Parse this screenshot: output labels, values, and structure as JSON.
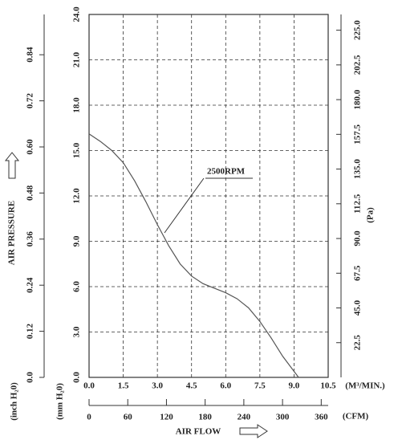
{
  "chart_data": {
    "type": "line",
    "y_label": "AIR PRESSURE",
    "x_label": "AIR FLOW",
    "y_unit": "(mm H₂0)",
    "y2_unit": "(Pa)",
    "y3_unit": "(inch H₂0)",
    "x_unit": "(M³/MIN.)",
    "x2_unit": "(CFM)",
    "x": [
      0,
      0.5,
      1.0,
      1.5,
      2.0,
      2.5,
      3.0,
      3.5,
      4.0,
      4.5,
      5.0,
      5.5,
      6.0,
      6.5,
      7.0,
      7.5,
      8.0,
      8.5,
      9.0,
      9.2
    ],
    "series": [
      {
        "name": "2500RPM",
        "color": "#555555",
        "values": [
          16.1,
          15.6,
          15.0,
          14.2,
          13.0,
          11.6,
          10.1,
          8.7,
          7.5,
          6.7,
          6.2,
          5.9,
          5.6,
          5.2,
          4.6,
          3.7,
          2.6,
          1.4,
          0.4,
          0
        ]
      }
    ],
    "xlim": [
      0,
      10.5
    ],
    "xticks": [
      {
        "value": 0,
        "label": "0.0"
      },
      1.5,
      {
        "value": 3,
        "label": "3.0"
      },
      4.5,
      {
        "value": 6,
        "label": "6.0"
      },
      7.5,
      {
        "value": 9,
        "label": "9.0"
      },
      10.5
    ],
    "ylim": [
      0,
      24
    ],
    "yticks": [
      {
        "value": 0,
        "label": "0.0"
      },
      {
        "value": 3,
        "label": "3.0"
      },
      {
        "value": 6,
        "label": "6.0"
      },
      {
        "value": 9,
        "label": "9.0"
      },
      {
        "value": 12,
        "label": "12.0"
      },
      {
        "value": 15,
        "label": "15.0"
      },
      {
        "value": 18,
        "label": "18.0"
      },
      {
        "value": 21,
        "label": "21.0"
      },
      {
        "value": 24,
        "label": "24.0"
      }
    ],
    "y2lim": [
      0,
      235.2
    ],
    "y2ticks": [
      22.5,
      {
        "value": 45,
        "label": "45.0"
      },
      67.5,
      {
        "value": 90,
        "label": "90.0"
      },
      112.5,
      {
        "value": 135,
        "label": "135.0"
      },
      157.5,
      {
        "value": 180,
        "label": "180.0"
      },
      202.5,
      {
        "value": 225,
        "label": "225.0"
      }
    ],
    "y3lim": [
      0,
      0.9449
    ],
    "y3ticks": [
      {
        "value": 0,
        "label": "0.0"
      },
      0.12,
      0.24,
      0.36,
      0.48,
      {
        "value": 0.6,
        "label": "0.60"
      },
      0.72,
      0.84
    ],
    "x2lim": [
      0,
      370.8
    ],
    "x2ticks": [
      0,
      60,
      120,
      180,
      240,
      300,
      360
    ],
    "grid": true
  }
}
